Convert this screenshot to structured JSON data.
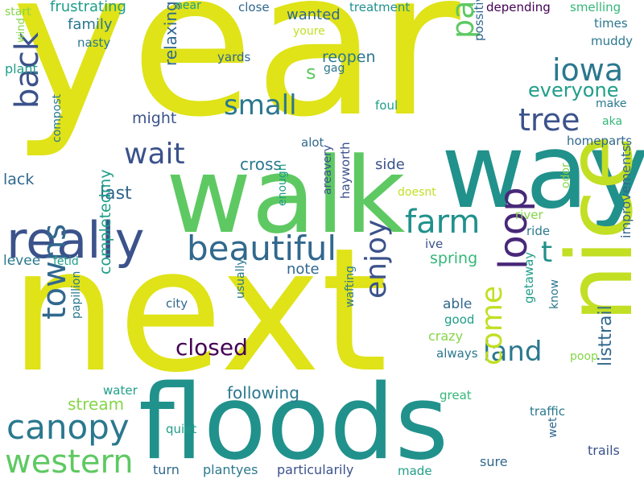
{
  "palette": {
    "lime": "#dfe318",
    "lime2": "#c2df23",
    "green": "#5ec962",
    "green2": "#86d549",
    "teal": "#21918c",
    "teal2": "#2a788e",
    "teal3": "#1f9e89",
    "blue": "#3b528b",
    "blue2": "#31688e",
    "purple": "#440154",
    "purple2": "#482878",
    "mint": "#35b779"
  },
  "words": [
    "year",
    "next",
    "walk",
    "way",
    "floods",
    "nice",
    "really",
    "loop",
    "farm",
    "beautiful",
    "back",
    "towns",
    "canopy",
    "western",
    "passing",
    "iowa",
    "tree",
    "small",
    "wait",
    "enjoy",
    "land",
    "come",
    "t",
    "s",
    "closed",
    "last",
    "might",
    "cross",
    "side",
    "everyone",
    "relaxing",
    "reopen",
    "frustrating",
    "family",
    "nasty",
    "start",
    "wind",
    "plant",
    "compost",
    "lack",
    "levee",
    "fetid",
    "completedmy",
    "stream",
    "water",
    "papillion",
    "quiet",
    "turn",
    "plantyes",
    "particularily",
    "made",
    "sure",
    "trails",
    "wet",
    "traffic",
    "great",
    "poop",
    "always",
    "crazy",
    "good",
    "able",
    "spring",
    "ride",
    "river",
    "doesnt",
    "ive",
    "note",
    "usually",
    "city",
    "wafting",
    "getaway",
    "know",
    "improvements",
    "listtrail",
    "following",
    "enough",
    "areavery",
    "hayworth",
    "odor",
    "alot",
    "homeparts",
    "aka",
    "make",
    "foul",
    "possitive",
    "muddy",
    "times",
    "smelling",
    "depending",
    "treatment",
    "wanted",
    "close",
    "near",
    "youre",
    "gag",
    "yards"
  ]
}
